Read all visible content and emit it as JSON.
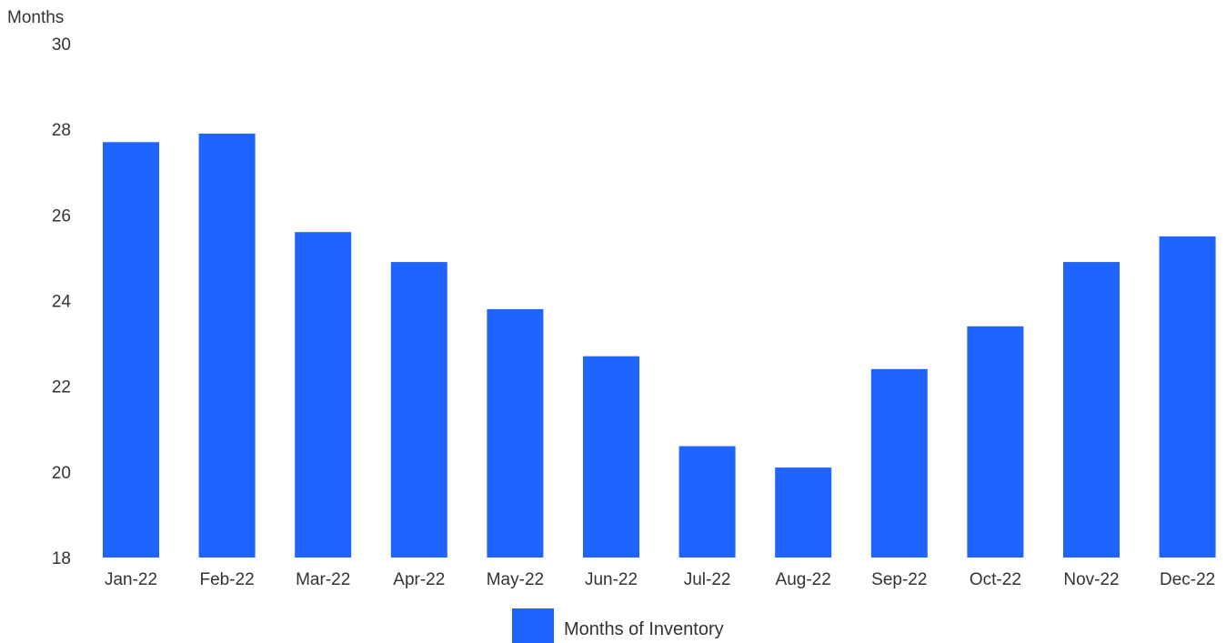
{
  "chart_data": {
    "type": "bar",
    "ylabel": "Months",
    "ylim": [
      18,
      30
    ],
    "yticks": [
      18,
      20,
      22,
      24,
      26,
      28,
      30
    ],
    "grid": false,
    "legend_position": "bottom",
    "categories": [
      "Jan-22",
      "Feb-22",
      "Mar-22",
      "Apr-22",
      "May-22",
      "Jun-22",
      "Jul-22",
      "Aug-22",
      "Sep-22",
      "Oct-22",
      "Nov-22",
      "Dec-22"
    ],
    "series": [
      {
        "name": "Months of Inventory",
        "color": "#1f64ff",
        "values": [
          27.7,
          27.9,
          25.6,
          24.9,
          23.8,
          22.7,
          20.6,
          20.1,
          22.4,
          23.4,
          24.9,
          25.5
        ]
      }
    ]
  }
}
